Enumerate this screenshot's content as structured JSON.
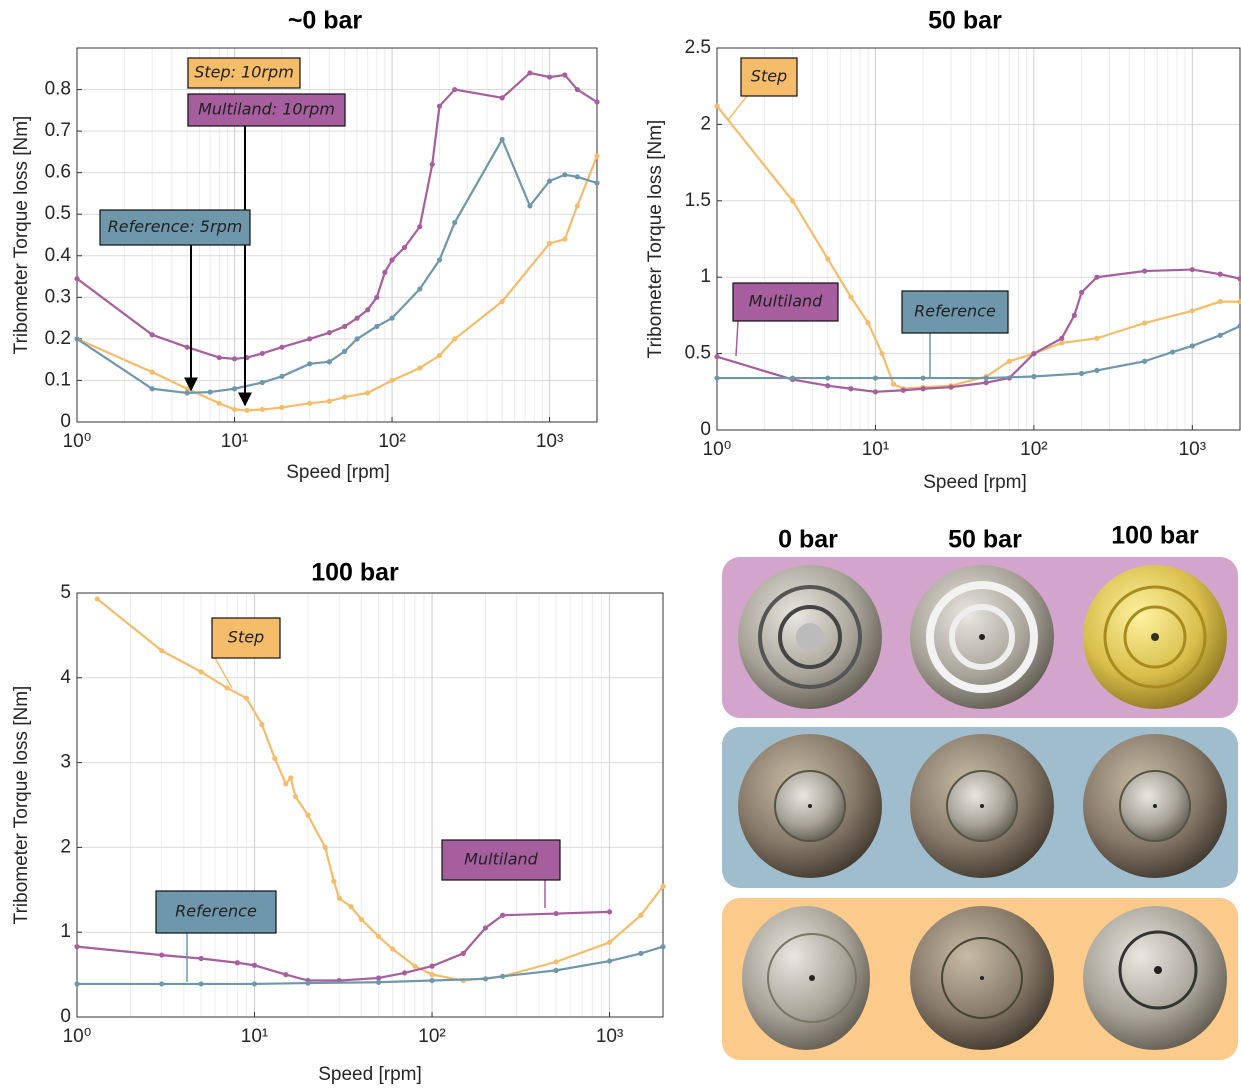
{
  "chart_data": [
    {
      "type": "line",
      "title": "~0 bar",
      "x_label": "Speed [rpm]",
      "y_label": "Tribometer Torque loss [Nm]",
      "log_x": true,
      "grid": true,
      "xlim": [
        1,
        2000
      ],
      "xticks": [
        {
          "value": 1,
          "label": "10⁰"
        },
        {
          "value": 10,
          "label": "10¹"
        },
        {
          "value": 100,
          "label": "10²"
        },
        {
          "value": 1000,
          "label": "10³"
        }
      ],
      "ylim": [
        0,
        0.9
      ],
      "yticks": [
        0,
        0.1,
        0.2,
        0.3,
        0.4,
        0.5,
        0.6,
        0.7,
        0.8
      ],
      "annotations": [
        "Step: 10rpm",
        "Multiland: 10rpm",
        "Reference: 5rpm"
      ],
      "series": [
        {
          "color": "#f5bc6a",
          "x": [
            1,
            3,
            5,
            8,
            10,
            12,
            15,
            20,
            30,
            40,
            50,
            70,
            100,
            150,
            200,
            250,
            500,
            1000,
            1250,
            1500,
            2000
          ],
          "values": [
            0.2,
            0.12,
            0.08,
            0.045,
            0.03,
            0.028,
            0.03,
            0.035,
            0.045,
            0.05,
            0.06,
            0.07,
            0.1,
            0.13,
            0.16,
            0.2,
            0.29,
            0.43,
            0.44,
            0.52,
            0.64
          ]
        },
        {
          "color": "#a65e9e",
          "x": [
            1,
            3,
            5,
            8,
            10,
            12,
            15,
            20,
            30,
            40,
            50,
            60,
            70,
            80,
            90,
            100,
            120,
            150,
            180,
            200,
            250,
            500,
            750,
            1000,
            1250,
            1500,
            2000
          ],
          "values": [
            0.345,
            0.21,
            0.18,
            0.155,
            0.152,
            0.155,
            0.165,
            0.18,
            0.2,
            0.215,
            0.23,
            0.25,
            0.27,
            0.3,
            0.36,
            0.39,
            0.42,
            0.47,
            0.62,
            0.76,
            0.8,
            0.78,
            0.84,
            0.83,
            0.835,
            0.8,
            0.77
          ]
        },
        {
          "color": "#6f97ac",
          "x": [
            1,
            3,
            5,
            7,
            10,
            15,
            20,
            30,
            40,
            50,
            60,
            80,
            100,
            150,
            200,
            250,
            500,
            750,
            1000,
            1250,
            1500,
            2000
          ],
          "values": [
            0.2,
            0.08,
            0.07,
            0.072,
            0.08,
            0.095,
            0.11,
            0.14,
            0.145,
            0.17,
            0.2,
            0.23,
            0.25,
            0.32,
            0.39,
            0.48,
            0.68,
            0.52,
            0.58,
            0.595,
            0.59,
            0.575
          ]
        }
      ]
    },
    {
      "type": "line",
      "title": "50 bar",
      "x_label": "Speed [rpm]",
      "y_label": "Tribometer Torque loss [Nm]",
      "log_x": true,
      "grid": true,
      "xlim": [
        1,
        2000
      ],
      "xticks": [
        {
          "value": 1,
          "label": "10⁰"
        },
        {
          "value": 10,
          "label": "10¹"
        },
        {
          "value": 100,
          "label": "10²"
        },
        {
          "value": 1000,
          "label": "10³"
        }
      ],
      "ylim": [
        0,
        2.5
      ],
      "yticks": [
        0,
        0.5,
        1,
        1.5,
        2,
        2.5
      ],
      "series": [
        {
          "name": "Step",
          "color": "#f5bc6a",
          "x": [
            1,
            3,
            5,
            7,
            9,
            11,
            13,
            15,
            20,
            30,
            50,
            70,
            100,
            150,
            250,
            500,
            1000,
            1500,
            2000
          ],
          "values": [
            2.12,
            1.5,
            1.12,
            0.87,
            0.7,
            0.5,
            0.3,
            0.27,
            0.28,
            0.29,
            0.35,
            0.45,
            0.5,
            0.57,
            0.6,
            0.7,
            0.78,
            0.84,
            0.84
          ]
        },
        {
          "name": "Multiland",
          "color": "#a65e9e",
          "x": [
            1,
            3,
            5,
            7,
            10,
            15,
            20,
            30,
            50,
            70,
            100,
            150,
            180,
            200,
            250,
            500,
            1000,
            1500,
            2000
          ],
          "values": [
            0.48,
            0.33,
            0.29,
            0.27,
            0.25,
            0.26,
            0.27,
            0.28,
            0.31,
            0.34,
            0.5,
            0.6,
            0.75,
            0.9,
            1.0,
            1.04,
            1.05,
            1.02,
            0.99
          ]
        },
        {
          "name": "Reference",
          "color": "#6f97ac",
          "x": [
            1,
            3,
            5,
            10,
            20,
            50,
            100,
            200,
            250,
            500,
            750,
            1000,
            1500,
            2000
          ],
          "values": [
            0.34,
            0.34,
            0.34,
            0.34,
            0.34,
            0.34,
            0.35,
            0.37,
            0.39,
            0.45,
            0.51,
            0.55,
            0.62,
            0.68
          ]
        }
      ]
    },
    {
      "type": "line",
      "title": "100 bar",
      "x_label": "Speed [rpm]",
      "y_label": "Tribometer Torque loss [Nm]",
      "log_x": true,
      "grid": true,
      "xlim": [
        1,
        2000
      ],
      "xticks": [
        {
          "value": 1,
          "label": "10⁰"
        },
        {
          "value": 10,
          "label": "10¹"
        },
        {
          "value": 100,
          "label": "10²"
        },
        {
          "value": 1000,
          "label": "10³"
        }
      ],
      "ylim": [
        0,
        5
      ],
      "yticks": [
        0,
        1,
        2,
        3,
        4,
        5
      ],
      "series": [
        {
          "name": "Step",
          "color": "#f5bc6a",
          "x": [
            1.3,
            3,
            5,
            7,
            9,
            11,
            13,
            15,
            16,
            17,
            20,
            25,
            28,
            30,
            35,
            40,
            50,
            60,
            80,
            100,
            150,
            250,
            500,
            1000,
            1500,
            2000
          ],
          "values": [
            4.93,
            4.32,
            4.07,
            3.88,
            3.76,
            3.45,
            3.05,
            2.75,
            2.82,
            2.6,
            2.38,
            2.0,
            1.6,
            1.4,
            1.3,
            1.15,
            0.95,
            0.8,
            0.6,
            0.5,
            0.43,
            0.48,
            0.65,
            0.88,
            1.2,
            1.54
          ]
        },
        {
          "name": "Multiland",
          "color": "#a65e9e",
          "x": [
            1,
            3,
            5,
            8,
            10,
            15,
            20,
            30,
            50,
            70,
            100,
            150,
            200,
            250,
            500,
            1000
          ],
          "values": [
            0.83,
            0.73,
            0.69,
            0.64,
            0.61,
            0.5,
            0.43,
            0.43,
            0.46,
            0.52,
            0.6,
            0.75,
            1.05,
            1.2,
            1.22,
            1.24
          ]
        },
        {
          "name": "Reference",
          "color": "#6f97ac",
          "x": [
            1,
            3,
            5,
            10,
            20,
            50,
            100,
            200,
            250,
            500,
            1000,
            1500,
            2000
          ],
          "values": [
            0.39,
            0.39,
            0.39,
            0.39,
            0.4,
            0.41,
            0.43,
            0.45,
            0.48,
            0.55,
            0.66,
            0.75,
            0.83
          ]
        }
      ]
    }
  ],
  "photo_panel": {
    "column_labels": [
      "0 bar",
      "50 bar",
      "100 bar"
    ]
  }
}
